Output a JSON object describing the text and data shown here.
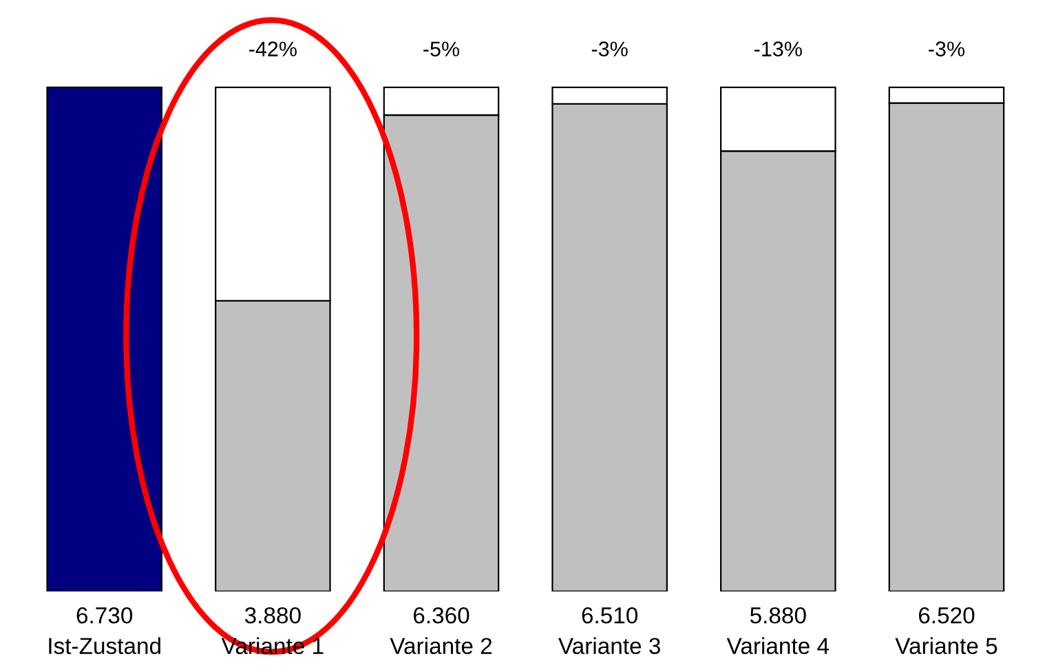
{
  "chart_data": {
    "type": "bar",
    "stacked": true,
    "categories": [
      "Ist-Zustand",
      "Variante 1",
      "Variante 2",
      "Variante 3",
      "Variante 4",
      "Variante 5"
    ],
    "series": [
      {
        "colors": [
          "#000080",
          "#c0c0c0",
          "#c0c0c0",
          "#c0c0c0",
          "#c0c0c0",
          "#c0c0c0"
        ],
        "values": [
          6730,
          3880,
          6360,
          6510,
          5880,
          6520
        ],
        "value_labels": [
          "6.730",
          "3.880",
          "6.360",
          "6.510",
          "5.880",
          "6.520"
        ]
      },
      {
        "color": "#ffffff",
        "values": [
          null,
          2850,
          370,
          220,
          850,
          210
        ]
      }
    ],
    "annotations": [
      {
        "text": "-42%",
        "x": "Variante 1",
        "y": 6730
      },
      {
        "text": "-5%",
        "x": "Variante 2",
        "y": 6730
      },
      {
        "text": "-3%",
        "x": "Variante 3",
        "y": 6730
      },
      {
        "text": "-13%",
        "x": "Variante 4",
        "y": 6730
      },
      {
        "text": "-3%",
        "x": "Variante 5",
        "y": 6730
      }
    ],
    "grid": false,
    "legend": false
  }
}
